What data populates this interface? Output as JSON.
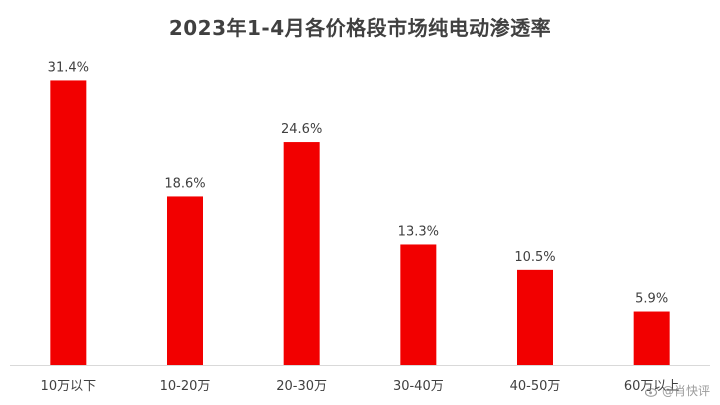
{
  "chart_data": {
    "type": "bar",
    "title": "2023年1-4月各价格段市场纯电动渗透率",
    "categories": [
      "10万以下",
      "10-20万",
      "20-30万",
      "30-40万",
      "40-50万",
      "60万以上"
    ],
    "values": [
      31.4,
      18.6,
      24.6,
      13.3,
      10.5,
      5.9
    ],
    "value_labels": [
      "31.4%",
      "18.6%",
      "24.6%",
      "13.3%",
      "10.5%",
      "5.9%"
    ],
    "unit": "%",
    "xlabel": "",
    "ylabel": "",
    "ylim": [
      0,
      32
    ],
    "grid": false,
    "bar_color": "#f20000",
    "axis_color": "#d9d9d9"
  },
  "watermark": {
    "text": "@肖快评",
    "icon": "weibo-logo-icon"
  }
}
